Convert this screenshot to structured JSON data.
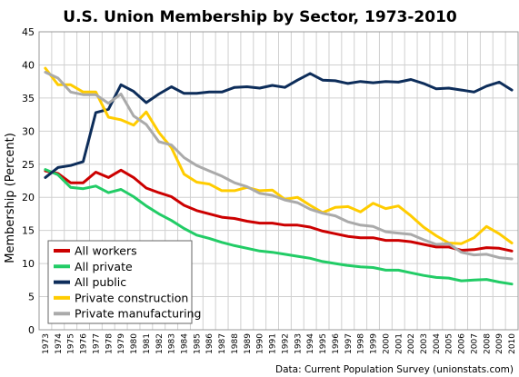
{
  "chart_data": {
    "type": "line",
    "title": "U.S. Union Membership by Sector, 1973-2010",
    "ylabel": "Membership (Percent)",
    "xlabel": "",
    "source": "Data: Current Population Survey (unionstats.com)",
    "ylim": [
      0,
      45
    ],
    "yticks": [
      0,
      5,
      10,
      15,
      20,
      25,
      30,
      35,
      40,
      45
    ],
    "grid": true,
    "legend_placement": "bottom-left",
    "x": [
      1973,
      1974,
      1975,
      1976,
      1977,
      1978,
      1979,
      1980,
      1981,
      1982,
      1983,
      1984,
      1985,
      1986,
      1987,
      1988,
      1989,
      1990,
      1991,
      1992,
      1993,
      1994,
      1995,
      1996,
      1997,
      1998,
      1999,
      2000,
      2001,
      2002,
      2003,
      2004,
      2005,
      2006,
      2007,
      2008,
      2009,
      2010
    ],
    "series": [
      {
        "name": "All workers",
        "color": "#cc0000",
        "values": [
          24.0,
          23.6,
          22.2,
          22.2,
          23.8,
          23.0,
          24.1,
          23.0,
          21.4,
          20.7,
          20.1,
          18.8,
          18.0,
          17.5,
          17.0,
          16.8,
          16.4,
          16.1,
          16.1,
          15.8,
          15.8,
          15.5,
          14.9,
          14.5,
          14.1,
          13.9,
          13.9,
          13.5,
          13.5,
          13.3,
          12.9,
          12.5,
          12.5,
          12.0,
          12.1,
          12.4,
          12.3,
          11.9
        ]
      },
      {
        "name": "All private",
        "color": "#22cc66",
        "values": [
          24.2,
          23.4,
          21.5,
          21.3,
          21.7,
          20.7,
          21.2,
          20.1,
          18.7,
          17.5,
          16.5,
          15.3,
          14.3,
          13.8,
          13.2,
          12.7,
          12.3,
          11.9,
          11.7,
          11.4,
          11.1,
          10.8,
          10.3,
          10.0,
          9.7,
          9.5,
          9.4,
          9.0,
          9.0,
          8.6,
          8.2,
          7.9,
          7.8,
          7.4,
          7.5,
          7.6,
          7.2,
          6.9
        ]
      },
      {
        "name": "All public",
        "color": "#0d2d5a",
        "values": [
          23.0,
          24.5,
          24.8,
          25.4,
          32.8,
          33.3,
          37.0,
          36.0,
          34.3,
          35.6,
          36.7,
          35.7,
          35.7,
          35.9,
          35.9,
          36.6,
          36.7,
          36.5,
          36.9,
          36.6,
          37.7,
          38.7,
          37.7,
          37.6,
          37.2,
          37.5,
          37.3,
          37.5,
          37.4,
          37.8,
          37.2,
          36.4,
          36.5,
          36.2,
          35.9,
          36.8,
          37.4,
          36.2
        ]
      },
      {
        "name": "Private construction",
        "color": "#ffcc00",
        "values": [
          39.5,
          37.0,
          37.0,
          35.9,
          35.9,
          32.1,
          31.7,
          30.9,
          32.9,
          29.8,
          27.5,
          23.5,
          22.3,
          22.0,
          21.0,
          21.0,
          21.5,
          21.0,
          21.1,
          19.7,
          20.0,
          18.8,
          17.7,
          18.5,
          18.6,
          17.8,
          19.1,
          18.3,
          18.7,
          17.2,
          15.5,
          14.2,
          13.1,
          13.0,
          13.9,
          15.6,
          14.5,
          13.1
        ]
      },
      {
        "name": "Private manufacturing",
        "color": "#aaaaaa",
        "values": [
          38.9,
          38.0,
          35.9,
          35.5,
          35.5,
          34.2,
          35.6,
          32.3,
          31.0,
          28.4,
          27.9,
          26.0,
          24.8,
          24.0,
          23.2,
          22.2,
          21.6,
          20.6,
          20.3,
          19.6,
          19.2,
          18.2,
          17.6,
          17.2,
          16.3,
          15.8,
          15.6,
          14.8,
          14.6,
          14.4,
          13.6,
          12.9,
          13.0,
          11.7,
          11.3,
          11.4,
          10.9,
          10.7
        ]
      }
    ]
  }
}
